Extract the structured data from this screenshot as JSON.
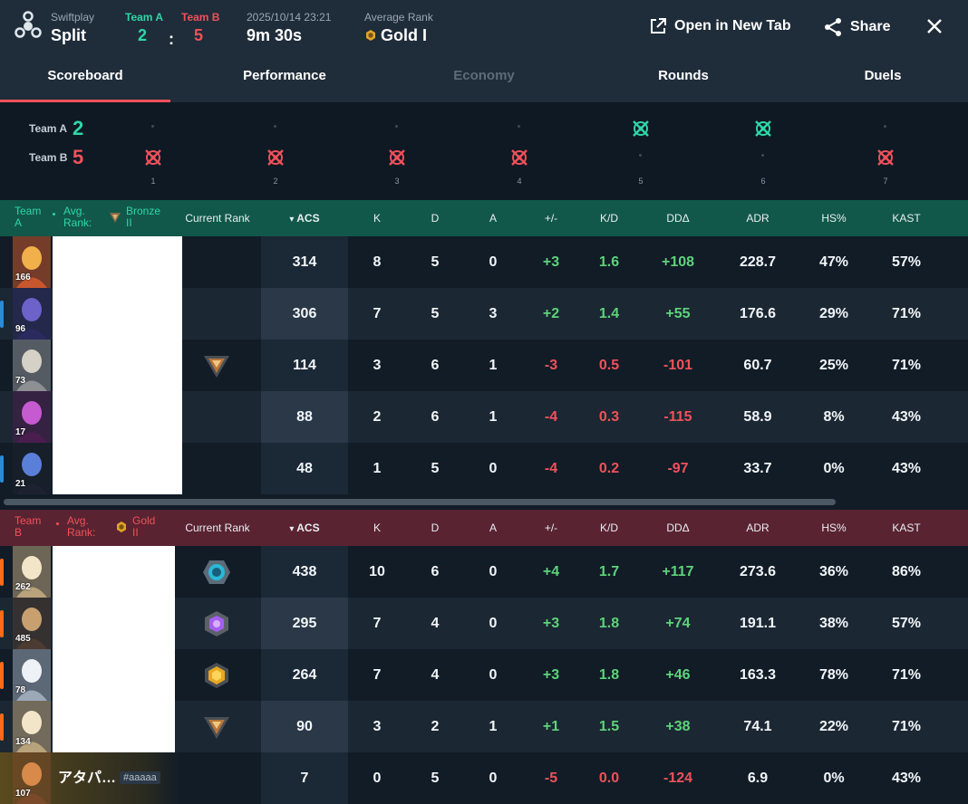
{
  "header": {
    "mode": "Swiftplay",
    "map": "Split",
    "team_a_label": "Team A",
    "team_b_label": "Team B",
    "team_a_score": "2",
    "score_sep": ":",
    "team_b_score": "5",
    "datetime": "2025/10/14 23:21",
    "duration": "9m 30s",
    "avg_rank_label": "Average Rank",
    "avg_rank": "Gold I",
    "open_new_tab": "Open in New Tab",
    "share": "Share"
  },
  "tabs": [
    {
      "label": "Scoreboard",
      "active": true
    },
    {
      "label": "Performance"
    },
    {
      "label": "Economy",
      "disabled": true
    },
    {
      "label": "Rounds"
    },
    {
      "label": "Duels"
    }
  ],
  "timeline": {
    "team_a_label": "Team A",
    "team_a_score": "2",
    "team_b_label": "Team B",
    "team_b_score": "5",
    "rounds": [
      {
        "num": "1",
        "winner": "B"
      },
      {
        "num": "2",
        "winner": "B"
      },
      {
        "num": "3",
        "winner": "B"
      },
      {
        "num": "4",
        "winner": "B"
      },
      {
        "num": "5",
        "winner": "A"
      },
      {
        "num": "6",
        "winner": "A"
      },
      {
        "num": "7",
        "winner": "B"
      }
    ]
  },
  "columns": [
    "Current Rank",
    "ACS",
    "K",
    "D",
    "A",
    "+/-",
    "K/D",
    "DDΔ",
    "ADR",
    "HS%",
    "KAST"
  ],
  "team_a": {
    "label_line1": "Team",
    "label_line2": "A",
    "avg_label_line1": "Avg.",
    "avg_label_line2": "Rank:",
    "avg_rank_line1": "Bronze",
    "avg_rank_line2": "II",
    "players": [
      {
        "level": "166",
        "agent": "agent-phoenix",
        "rank": "",
        "acs": "314",
        "k": "8",
        "d": "5",
        "a": "0",
        "pm": "+3",
        "kd": "1.6",
        "dd": "+108",
        "adr": "228.7",
        "hs": "47%",
        "kast": "57%",
        "side": ""
      },
      {
        "level": "96",
        "agent": "agent-omen",
        "rank": "",
        "acs": "306",
        "k": "7",
        "d": "5",
        "a": "3",
        "pm": "+2",
        "kd": "1.4",
        "dd": "+55",
        "adr": "176.6",
        "hs": "29%",
        "kast": "71%",
        "side": "#2a8bd6"
      },
      {
        "level": "73",
        "agent": "agent-kayo",
        "rank": "bronze",
        "acs": "114",
        "k": "3",
        "d": "6",
        "a": "1",
        "pm": "-3",
        "kd": "0.5",
        "dd": "-101",
        "adr": "60.7",
        "hs": "25%",
        "kast": "71%",
        "side": ""
      },
      {
        "level": "17",
        "agent": "agent-reyna",
        "rank": "",
        "acs": "88",
        "k": "2",
        "d": "6",
        "a": "1",
        "pm": "-4",
        "kd": "0.3",
        "dd": "-115",
        "adr": "58.9",
        "hs": "8%",
        "kast": "43%",
        "side": ""
      },
      {
        "level": "21",
        "agent": "agent-iso",
        "rank": "",
        "acs": "48",
        "k": "1",
        "d": "5",
        "a": "0",
        "pm": "-4",
        "kd": "0.2",
        "dd": "-97",
        "adr": "33.7",
        "hs": "0%",
        "kast": "43%",
        "side": "#2a8bd6"
      }
    ]
  },
  "team_b": {
    "label_line1": "Team",
    "label_line2": "B",
    "avg_label_line1": "Avg.",
    "avg_label_line2": "Rank:",
    "avg_rank_line1": "Gold",
    "avg_rank_line2": "II",
    "players": [
      {
        "level": "262",
        "agent": "agent-sage",
        "rank": "diamond",
        "acs": "438",
        "k": "10",
        "d": "6",
        "a": "0",
        "pm": "+4",
        "kd": "1.7",
        "dd": "+117",
        "adr": "273.6",
        "hs": "36%",
        "kast": "86%",
        "side": "#ff6a1a"
      },
      {
        "level": "485",
        "agent": "agent-chamber",
        "rank": "ascendant",
        "acs": "295",
        "k": "7",
        "d": "4",
        "a": "0",
        "pm": "+3",
        "kd": "1.8",
        "dd": "+74",
        "adr": "191.1",
        "hs": "38%",
        "kast": "57%",
        "side": "#ff6a1a"
      },
      {
        "level": "78",
        "agent": "agent-jett",
        "rank": "gold",
        "acs": "264",
        "k": "7",
        "d": "4",
        "a": "0",
        "pm": "+3",
        "kd": "1.8",
        "dd": "+46",
        "adr": "163.3",
        "hs": "78%",
        "kast": "71%",
        "side": "#ff6a1a"
      },
      {
        "level": "134",
        "agent": "agent-sage",
        "rank": "bronze",
        "acs": "90",
        "k": "3",
        "d": "2",
        "a": "1",
        "pm": "+1",
        "kd": "1.5",
        "dd": "+38",
        "adr": "74.1",
        "hs": "22%",
        "kast": "71%",
        "side": "#ff6a1a"
      },
      {
        "level": "107",
        "agent": "agent-brimstone",
        "rank": "",
        "name": "アタパ…",
        "tag": "#aaaaa",
        "acs": "7",
        "k": "0",
        "d": "5",
        "a": "0",
        "pm": "-5",
        "kd": "0.0",
        "dd": "-124",
        "adr": "6.9",
        "hs": "0%",
        "kast": "43%",
        "side": "",
        "highlight": true
      }
    ]
  },
  "colors": {
    "team_a": "#2fd6a6",
    "team_b": "#f0515a",
    "positive": "#5fd27b",
    "negative": "#f0515a"
  }
}
